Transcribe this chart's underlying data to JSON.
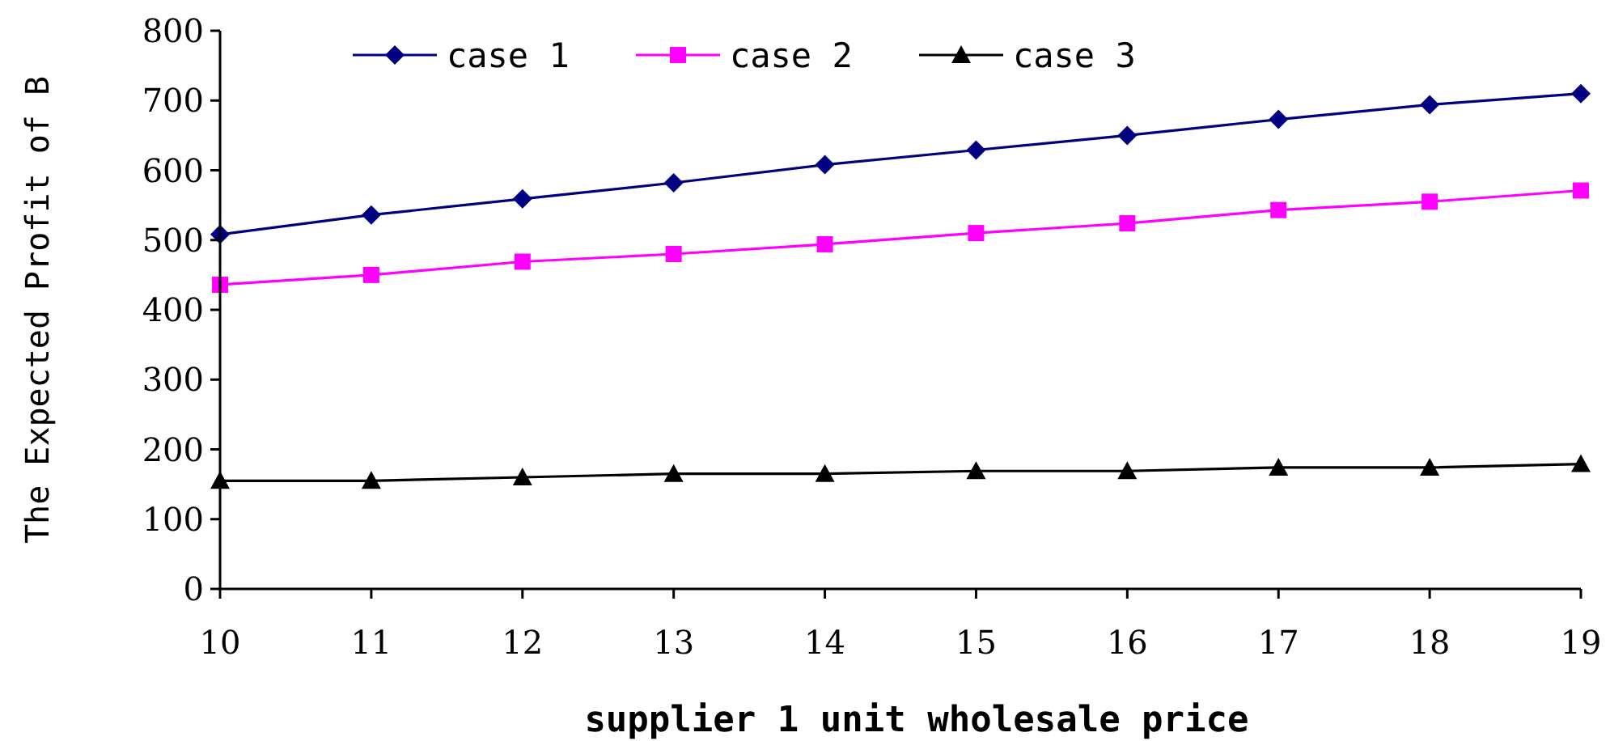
{
  "chart_data": {
    "type": "line",
    "xlabel": "supplier 1 unit wholesale price",
    "ylabel": "The Expected Profit of B",
    "x": [
      10,
      11,
      12,
      13,
      14,
      15,
      16,
      17,
      18,
      19
    ],
    "xlim": [
      10,
      19
    ],
    "xticks": [
      10,
      11,
      12,
      13,
      14,
      15,
      16,
      17,
      18,
      19
    ],
    "ylim": [
      0,
      800
    ],
    "yticks": [
      0,
      100,
      200,
      300,
      400,
      500,
      600,
      700,
      800
    ],
    "legend": "top",
    "grid": false,
    "series": [
      {
        "name": "case 1",
        "color": "#000080",
        "marker": "diamond",
        "values": [
          508,
          536,
          559,
          582,
          608,
          629,
          650,
          673,
          694,
          710
        ]
      },
      {
        "name": "case 2",
        "color": "#ff00ff",
        "marker": "square",
        "values": [
          436,
          450,
          469,
          480,
          494,
          510,
          524,
          543,
          555,
          571
        ]
      },
      {
        "name": "case 3",
        "color": "#000000",
        "marker": "triangle",
        "values": [
          155,
          155,
          160,
          165,
          165,
          169,
          169,
          174,
          174,
          179
        ]
      }
    ]
  }
}
